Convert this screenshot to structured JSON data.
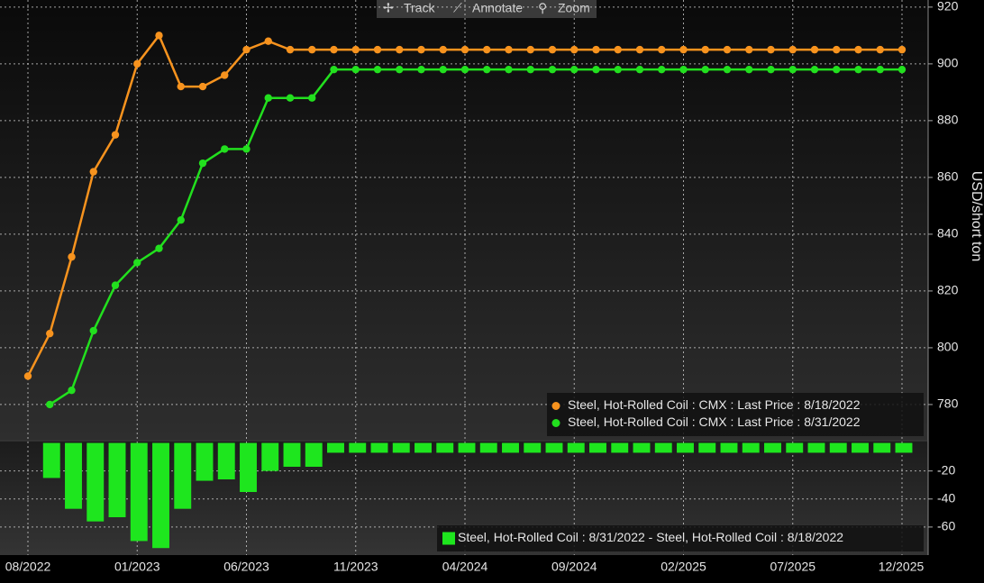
{
  "toolbar": {
    "buttons": [
      "Track",
      "Annotate",
      "Zoom"
    ]
  },
  "chart_data": [
    {
      "type": "line",
      "y_axis_label": "USD/short ton",
      "ylim": [
        767.6,
        922.5
      ],
      "yticks": [
        780,
        800,
        820,
        840,
        860,
        880,
        900,
        920
      ],
      "grid": true,
      "legend": "bottom-right",
      "series": [
        {
          "name": "Steel, Hot-Rolled Coil : CMX : Last Price : 8/18/2022",
          "color": "#f7931e",
          "values": [
            790,
            805,
            832,
            862,
            875,
            900,
            910,
            892,
            892,
            896,
            905,
            908,
            905,
            905,
            905,
            905,
            905,
            905,
            905,
            905,
            905,
            905,
            905,
            905,
            905,
            905,
            905,
            905,
            905,
            905,
            905,
            905,
            905,
            905,
            905,
            905,
            905,
            905,
            905,
            905,
            905
          ]
        },
        {
          "name": "Steel, Hot-Rolled Coil : CMX : Last Price : 8/31/2022",
          "color": "#22e01e",
          "values": [
            null,
            780,
            785,
            806,
            822,
            830,
            835,
            845,
            865,
            870,
            870,
            888,
            888,
            888,
            898,
            898,
            898,
            898,
            898,
            898,
            898,
            898,
            898,
            898,
            898,
            898,
            898,
            898,
            898,
            898,
            898,
            898,
            898,
            898,
            898,
            898,
            898,
            898,
            898,
            898,
            898
          ]
        }
      ]
    },
    {
      "type": "bar",
      "ylim": [
        -80,
        1
      ],
      "yticks": [
        -20,
        -40,
        -60
      ],
      "grid": true,
      "legend": "bottom-right",
      "categories": [
        "08/2022",
        null,
        null,
        null,
        null,
        "01/2023",
        null,
        null,
        null,
        null,
        "06/2023",
        null,
        null,
        null,
        null,
        "11/2023",
        null,
        null,
        null,
        null,
        "04/2024",
        null,
        null,
        null,
        null,
        "09/2024",
        null,
        null,
        null,
        null,
        "02/2025",
        null,
        null,
        null,
        null,
        "07/2025",
        null,
        null,
        null,
        null,
        "12/2025"
      ],
      "series": [
        {
          "name": "Steel, Hot-Rolled Coil : 8/31/2022 - Steel, Hot-Rolled Coil : 8/18/2022",
          "color": "#1ee61e",
          "values": [
            null,
            -25,
            -47,
            -56,
            -53,
            -70,
            -75,
            -47,
            -27,
            -26,
            -35,
            -20,
            -17,
            -17,
            -7,
            -7,
            -7,
            -7,
            -7,
            -7,
            -7,
            -7,
            -7,
            -7,
            -7,
            -7,
            -7,
            -7,
            -7,
            -7,
            -7,
            -7,
            -7,
            -7,
            -7,
            -7,
            -7,
            -7,
            -7,
            -7,
            -7
          ]
        }
      ]
    }
  ]
}
